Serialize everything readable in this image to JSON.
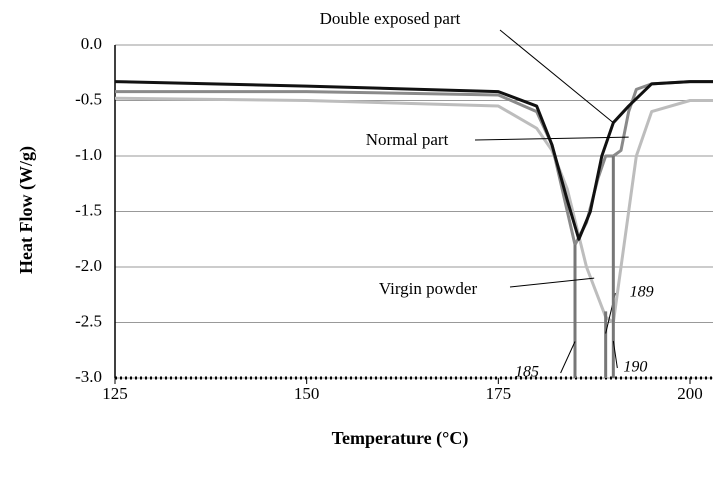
{
  "chart_data": {
    "type": "line",
    "xlabel": "Temperature (°C)",
    "ylabel": "Heat Flow (W/g)",
    "xlim": [
      125,
      203
    ],
    "xticks": [
      125,
      150,
      175,
      200
    ],
    "ylim": [
      -3.0,
      0.0
    ],
    "yticks": [
      {
        "value": 0,
        "label": "0.0"
      },
      -0.5,
      {
        "value": -1,
        "label": "-1.0"
      },
      -1.5,
      {
        "value": -2,
        "label": "-2.0"
      },
      -2.5,
      {
        "value": -3,
        "label": "-3.0"
      }
    ],
    "grid": true,
    "series": [
      {
        "name": "Virgin powder",
        "color": "#bdbdbd",
        "x": [
          125,
          150,
          175,
          180,
          182,
          184,
          186.5,
          189,
          190,
          191,
          192,
          193,
          195,
          200,
          203
        ],
        "values": [
          -0.48,
          -0.5,
          -0.55,
          -0.75,
          -0.95,
          -1.3,
          -2.0,
          -2.45,
          -2.5,
          -2.0,
          -1.5,
          -1.0,
          -0.6,
          -0.5,
          -0.5
        ]
      },
      {
        "name": "Normal part",
        "color": "#8a8a8a",
        "x": [
          125,
          150,
          175,
          180,
          182,
          184,
          185,
          186.5,
          188,
          189,
          190,
          191,
          192,
          193,
          195,
          200,
          203
        ],
        "values": [
          -0.42,
          -0.42,
          -0.45,
          -0.6,
          -0.9,
          -1.5,
          -1.8,
          -1.6,
          -1.2,
          -1.0,
          -1.0,
          -0.95,
          -0.6,
          -0.4,
          -0.35,
          -0.33,
          -0.33
        ]
      },
      {
        "name": "Double exposed part",
        "color": "#111111",
        "x": [
          125,
          150,
          175,
          180,
          182,
          184,
          185.5,
          187,
          188.5,
          190,
          192,
          195,
          200,
          203
        ],
        "values": [
          -0.33,
          -0.37,
          -0.42,
          -0.55,
          -0.9,
          -1.4,
          -1.75,
          -1.5,
          -1.0,
          -0.7,
          -0.55,
          -0.35,
          -0.33,
          -0.33
        ]
      }
    ],
    "vlines": [
      {
        "x": 185,
        "y": -1.8
      },
      {
        "x": 189,
        "y": -2.4
      },
      {
        "x": 190,
        "y": -1.0
      }
    ],
    "annotations": [
      {
        "text": "Double exposed part",
        "x": 190,
        "y": -0.7
      },
      {
        "text": "Normal part",
        "x": 192,
        "y": -0.83
      },
      {
        "text": "Virgin powder",
        "x": 187.5,
        "y": -2.1
      }
    ]
  }
}
